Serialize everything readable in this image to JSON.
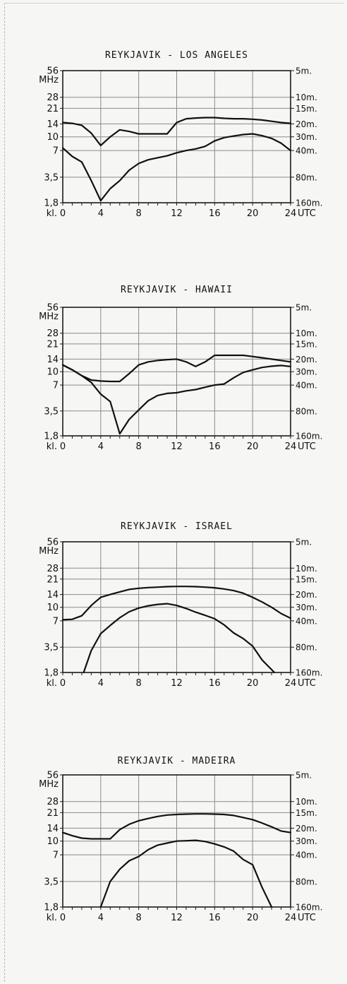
{
  "chart_data": [
    {
      "type": "line",
      "title": "REYKJAVIK - LOS ANGELES",
      "y_unit_label": "MHz",
      "x_start_label": "kl.",
      "x_end_label": "UTC",
      "x_ticks": [
        0,
        4,
        8,
        12,
        16,
        20,
        24
      ],
      "y_ticks": [
        1.8,
        3.5,
        7,
        10,
        14,
        21,
        28,
        56
      ],
      "y_tick_labels": [
        "1,8",
        "3,5",
        "7",
        "10",
        "14",
        "21",
        "28",
        "56"
      ],
      "right_band_labels": [
        {
          "label": "5m.",
          "mhz": 56
        },
        {
          "label": "10m.",
          "mhz": 28
        },
        {
          "label": "15m.",
          "mhz": 21
        },
        {
          "label": "20m.",
          "mhz": 14
        },
        {
          "label": "30m.",
          "mhz": 10
        },
        {
          "label": "40m.",
          "mhz": 7
        },
        {
          "label": "80m.",
          "mhz": 3.5
        },
        {
          "label": "160m.",
          "mhz": 1.8
        }
      ],
      "xlim": [
        0,
        24
      ],
      "ylim": [
        1.8,
        56
      ],
      "y_scale": "log",
      "grid": true,
      "series": [
        {
          "x": [
            0,
            1,
            2,
            3,
            4,
            5,
            6,
            7,
            8,
            9,
            10,
            11,
            12,
            13,
            14,
            15,
            16,
            17,
            18,
            19,
            20,
            21,
            22,
            23,
            24
          ],
          "y": [
            14.5,
            14.2,
            13.5,
            11,
            8,
            10,
            12,
            11.5,
            10.8,
            10.8,
            10.8,
            10.8,
            14.5,
            16,
            16.3,
            16.5,
            16.5,
            16.2,
            16,
            16,
            15.8,
            15.5,
            15,
            14.5,
            14.2
          ]
        },
        {
          "x": [
            0,
            1,
            2,
            3,
            4,
            5,
            6,
            7,
            8,
            9,
            10,
            11,
            12,
            13,
            14,
            15,
            16,
            17,
            18,
            19,
            20,
            21,
            22,
            23,
            24
          ],
          "y": [
            7.5,
            6,
            5.2,
            3.2,
            1.9,
            2.6,
            3.2,
            4.2,
            5,
            5.5,
            5.8,
            6.1,
            6.6,
            7,
            7.3,
            7.8,
            9,
            9.8,
            10.2,
            10.6,
            10.8,
            10.3,
            9.6,
            8.5,
            7
          ]
        }
      ]
    },
    {
      "type": "line",
      "title": "REYKJAVIK - HAWAII",
      "y_unit_label": "MHz",
      "x_start_label": "kl.",
      "x_end_label": "UTC",
      "x_ticks": [
        0,
        4,
        8,
        12,
        16,
        20,
        24
      ],
      "y_ticks": [
        1.8,
        3.5,
        7,
        10,
        14,
        21,
        28,
        56
      ],
      "y_tick_labels": [
        "1,8",
        "3,5",
        "7",
        "10",
        "14",
        "21",
        "28",
        "56"
      ],
      "right_band_labels": [
        {
          "label": "5m.",
          "mhz": 56
        },
        {
          "label": "10m.",
          "mhz": 28
        },
        {
          "label": "15m.",
          "mhz": 21
        },
        {
          "label": "20m.",
          "mhz": 14
        },
        {
          "label": "30m.",
          "mhz": 10
        },
        {
          "label": "40m.",
          "mhz": 7
        },
        {
          "label": "80m.",
          "mhz": 3.5
        },
        {
          "label": "160m.",
          "mhz": 1.8
        }
      ],
      "xlim": [
        0,
        24
      ],
      "ylim": [
        1.8,
        56
      ],
      "y_scale": "log",
      "grid": true,
      "series": [
        {
          "x": [
            0,
            1,
            2,
            3,
            4,
            5,
            6,
            7,
            8,
            9,
            10,
            11,
            12,
            13,
            14,
            15,
            16,
            17,
            18,
            19,
            20,
            21,
            22,
            23,
            24
          ],
          "y": [
            12,
            10.5,
            9,
            8,
            7.8,
            7.7,
            7.7,
            9.5,
            12,
            13,
            13.5,
            13.8,
            14,
            13,
            11.5,
            13,
            15.5,
            15.5,
            15.5,
            15.5,
            15,
            14.5,
            14,
            13.5,
            13
          ]
        },
        {
          "x": [
            0,
            1,
            2,
            3,
            4,
            5,
            6,
            7,
            8,
            9,
            10,
            11,
            12,
            13,
            14,
            15,
            16,
            17,
            18,
            19,
            20,
            21,
            22,
            23,
            24
          ],
          "y": [
            12,
            10.5,
            9,
            7.5,
            5.5,
            4.5,
            1.9,
            2.8,
            3.6,
            4.6,
            5.3,
            5.6,
            5.7,
            6,
            6.2,
            6.6,
            7,
            7.2,
            8.5,
            9.8,
            10.5,
            11.2,
            11.6,
            11.8,
            11.5
          ]
        }
      ]
    },
    {
      "type": "line",
      "title": "REYKJAVIK - ISRAEL",
      "y_unit_label": "MHz",
      "x_start_label": "kl.",
      "x_end_label": "UTC",
      "x_ticks": [
        0,
        4,
        8,
        12,
        16,
        20,
        24
      ],
      "y_ticks": [
        1.8,
        3.5,
        7,
        10,
        14,
        21,
        28,
        56
      ],
      "y_tick_labels": [
        "1,8",
        "3,5",
        "7",
        "10",
        "14",
        "21",
        "28",
        "56"
      ],
      "right_band_labels": [
        {
          "label": "5m.",
          "mhz": 56
        },
        {
          "label": "10m.",
          "mhz": 28
        },
        {
          "label": "15m.",
          "mhz": 21
        },
        {
          "label": "20m.",
          "mhz": 14
        },
        {
          "label": "30m.",
          "mhz": 10
        },
        {
          "label": "40m.",
          "mhz": 7
        },
        {
          "label": "80m.",
          "mhz": 3.5
        },
        {
          "label": "160m.",
          "mhz": 1.8
        }
      ],
      "xlim": [
        0,
        24
      ],
      "ylim": [
        1.8,
        56
      ],
      "y_scale": "log",
      "grid": true,
      "series": [
        {
          "x": [
            0,
            1,
            2,
            3,
            4,
            5,
            6,
            7,
            8,
            9,
            10,
            11,
            12,
            13,
            14,
            15,
            16,
            17,
            18,
            19,
            20,
            21,
            22,
            23,
            24
          ],
          "y": [
            7.2,
            7.3,
            8,
            10.5,
            13,
            14,
            15,
            16,
            16.5,
            16.8,
            17,
            17.2,
            17.3,
            17.3,
            17.2,
            17,
            16.7,
            16.2,
            15.5,
            14.5,
            13,
            11.5,
            10,
            8.5,
            7.5
          ]
        },
        {
          "x": [
            2.2,
            3,
            4,
            5,
            6,
            7,
            8,
            9,
            10,
            11,
            12,
            13,
            14,
            15,
            16,
            17,
            18,
            19,
            20,
            21,
            22.3
          ],
          "y": [
            1.8,
            3.2,
            5,
            6.2,
            7.6,
            8.9,
            9.8,
            10.4,
            10.8,
            11,
            10.5,
            9.7,
            8.8,
            8.1,
            7.4,
            6.3,
            5.1,
            4.4,
            3.6,
            2.5,
            1.8
          ]
        }
      ]
    },
    {
      "type": "line",
      "title": "REYKJAVIK - MADEIRA",
      "y_unit_label": "MHz",
      "x_start_label": "kl.",
      "x_end_label": "UTC",
      "x_ticks": [
        0,
        4,
        8,
        12,
        16,
        20,
        24
      ],
      "y_ticks": [
        1.8,
        3.5,
        7,
        10,
        14,
        21,
        28,
        56
      ],
      "y_tick_labels": [
        "1,8",
        "3,5",
        "7",
        "10",
        "14",
        "21",
        "28",
        "56"
      ],
      "right_band_labels": [
        {
          "label": "5m.",
          "mhz": 56
        },
        {
          "label": "10m.",
          "mhz": 28
        },
        {
          "label": "15m.",
          "mhz": 21
        },
        {
          "label": "20m.",
          "mhz": 14
        },
        {
          "label": "30m.",
          "mhz": 10
        },
        {
          "label": "40m.",
          "mhz": 7
        },
        {
          "label": "80m.",
          "mhz": 3.5
        },
        {
          "label": "160m.",
          "mhz": 1.8
        }
      ],
      "xlim": [
        0,
        24
      ],
      "ylim": [
        1.8,
        56
      ],
      "y_scale": "log",
      "grid": true,
      "series": [
        {
          "x": [
            0,
            1,
            2,
            3,
            4,
            5,
            6,
            7,
            8,
            9,
            10,
            11,
            12,
            13,
            14,
            15,
            16,
            17,
            18,
            19,
            20,
            21,
            22,
            23,
            24
          ],
          "y": [
            12.5,
            11.5,
            10.8,
            10.6,
            10.6,
            10.6,
            13.5,
            15.5,
            17,
            18,
            19,
            19.7,
            20,
            20.2,
            20.3,
            20.3,
            20.2,
            20,
            19.5,
            18.5,
            17.5,
            16,
            14.5,
            13,
            12.5
          ]
        },
        {
          "x": [
            4,
            5,
            6,
            7,
            8,
            9,
            10,
            11,
            12,
            13,
            14,
            15,
            16,
            17,
            18,
            19,
            20,
            21,
            22
          ],
          "y": [
            1.8,
            3.5,
            4.8,
            6,
            6.7,
            8,
            9,
            9.5,
            10,
            10.1,
            10.2,
            9.9,
            9.3,
            8.6,
            7.7,
            6.2,
            5.4,
            3,
            1.8
          ]
        }
      ]
    }
  ]
}
